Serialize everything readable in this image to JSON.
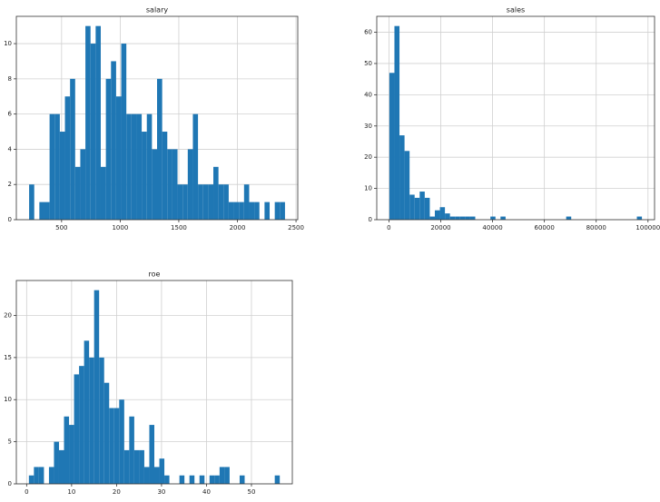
{
  "chart_data": [
    {
      "type": "histogram",
      "title": "salary",
      "color": "#1f77b4",
      "grid": true,
      "bins": [
        223.0,
        266.7,
        310.3,
        354.0,
        397.6,
        441.3,
        485.0,
        528.6,
        572.3,
        615.9,
        659.6,
        703.3,
        746.9,
        790.6,
        834.2,
        877.9,
        921.6,
        965.2,
        1008.9,
        1052.5,
        1096.2,
        1139.9,
        1183.5,
        1227.2,
        1270.8,
        1314.5,
        1358.2,
        1401.8,
        1445.5,
        1489.1,
        1532.8,
        1576.5,
        1620.1,
        1663.8,
        1707.4,
        1751.1,
        1794.8,
        1838.4,
        1882.1,
        1925.7,
        1969.4,
        2013.1,
        2056.7,
        2100.4,
        2144.0,
        2187.7,
        2231.4,
        2275.0,
        2318.7,
        2362.3,
        2406.0
      ],
      "counts": [
        2,
        0,
        1,
        1,
        6,
        6,
        5,
        7,
        8,
        3,
        4,
        11,
        10,
        11,
        3,
        8,
        9,
        7,
        10,
        6,
        6,
        6,
        5,
        6,
        4,
        8,
        5,
        4,
        4,
        2,
        2,
        4,
        6,
        2,
        2,
        2,
        3,
        2,
        2,
        1,
        1,
        1,
        2,
        1,
        1,
        0,
        1,
        0,
        1,
        1
      ],
      "xlim": [
        114,
        2515
      ],
      "ylim": [
        0,
        11.55
      ],
      "xticks": [
        500,
        1000,
        1500,
        2000,
        2500
      ],
      "yticks": [
        0,
        2,
        4,
        6,
        8,
        10
      ]
    },
    {
      "type": "histogram",
      "title": "sales",
      "color": "#1f77b4",
      "grid": true,
      "bins": [
        175,
        2124.5,
        4074,
        6023.5,
        7973,
        9922.5,
        11872,
        13821.5,
        15771,
        17720.5,
        19670,
        21619.5,
        23569,
        25518.5,
        27468,
        29417.5,
        31367,
        33316.5,
        35266,
        37215.5,
        39165,
        41114.5,
        43064,
        45013.5,
        46963,
        48912.5,
        50862,
        52811.5,
        54761,
        56710.5,
        58660,
        60609.5,
        62559,
        64508.5,
        66458,
        68407.5,
        70357,
        72306.5,
        74256,
        76205.5,
        78155,
        80104.5,
        82054,
        84003.5,
        85953,
        87902.5,
        89852,
        91801.5,
        93751,
        95700.5,
        97650
      ],
      "counts": [
        47,
        62,
        27,
        22,
        8,
        7,
        9,
        7,
        1,
        3,
        4,
        2,
        1,
        1,
        1,
        1,
        1,
        0,
        0,
        0,
        1,
        0,
        1,
        0,
        0,
        0,
        0,
        0,
        0,
        0,
        0,
        0,
        0,
        0,
        0,
        1,
        0,
        0,
        0,
        0,
        0,
        0,
        0,
        0,
        0,
        0,
        0,
        0,
        0,
        1
      ],
      "xlim": [
        -4699,
        102523
      ],
      "ylim": [
        0,
        65.1
      ],
      "xticks": [
        0,
        20000,
        40000,
        60000,
        80000,
        100000
      ],
      "yticks": [
        0,
        10,
        20,
        30,
        40,
        50,
        60
      ]
    },
    {
      "type": "histogram",
      "title": "roe",
      "color": "#1f77b4",
      "grid": true,
      "bins": [
        0.5,
        1.616,
        2.732,
        3.848,
        4.964,
        6.08,
        7.196,
        8.312,
        9.428,
        10.544,
        11.66,
        12.776,
        13.892,
        15.008,
        16.124,
        17.24,
        18.356,
        19.472,
        20.588,
        21.704,
        22.82,
        23.936,
        25.052,
        26.168,
        27.284,
        28.4,
        29.516,
        30.632,
        31.748,
        32.864,
        33.98,
        35.096,
        36.212,
        37.328,
        38.444,
        39.56,
        40.676,
        41.792,
        42.908,
        44.024,
        45.14,
        46.256,
        47.372,
        48.488,
        49.604,
        50.72,
        51.836,
        52.952,
        54.068,
        55.184,
        56.3
      ],
      "counts": [
        1,
        2,
        2,
        0,
        2,
        5,
        4,
        8,
        7,
        13,
        14,
        17,
        15,
        23,
        15,
        12,
        9,
        9,
        10,
        4,
        8,
        4,
        4,
        2,
        7,
        2,
        3,
        1,
        0,
        0,
        1,
        0,
        1,
        0,
        1,
        0,
        1,
        1,
        2,
        2,
        0,
        0,
        1,
        0,
        0,
        0,
        0,
        0,
        0,
        1
      ],
      "xlim": [
        -2.29,
        59.09
      ],
      "ylim": [
        0,
        24.15
      ],
      "xticks": [
        0,
        10,
        20,
        30,
        40,
        50
      ],
      "yticks": [
        0,
        5,
        10,
        15,
        20
      ]
    }
  ]
}
